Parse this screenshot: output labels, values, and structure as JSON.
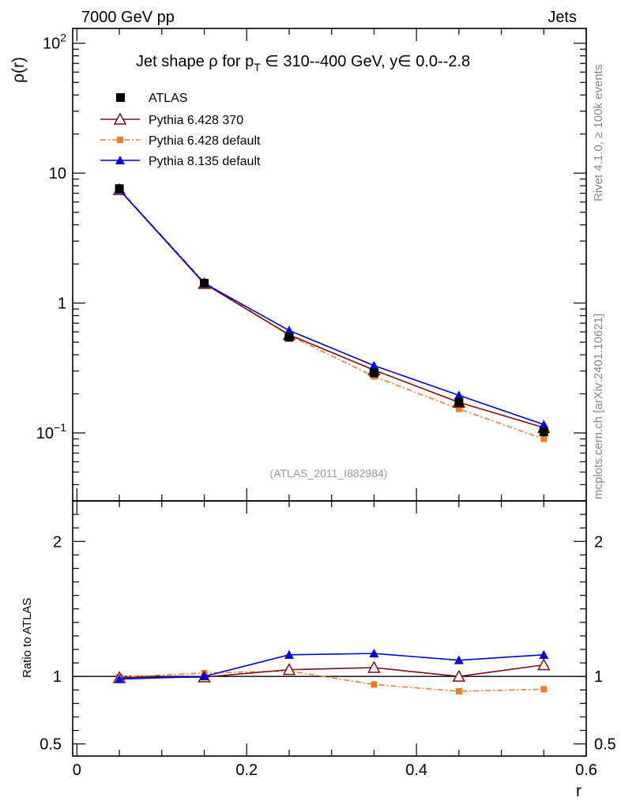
{
  "header": {
    "left": "7000 GeV pp",
    "right": "Jets"
  },
  "side_labels": {
    "rivet": "Rivet 4.1.0, ≥ 100k events",
    "mcplots": "mcplots.cern.ch [arXiv:2401.10621]"
  },
  "chart_data": [
    {
      "type": "line",
      "panel": "main",
      "title": "Jet shape ρ for p_T ∈ 310--400 GeV, y∈ 0.0--2.8",
      "title_parts": {
        "pre": "Jet shape ρ for p",
        "sub": "T",
        "post": " ∈ 310--400 GeV, y∈ 0.0--2.8"
      },
      "xlabel": "r",
      "ylabel": "ρ(r)",
      "yscale": "log",
      "xlim": [
        -0.005,
        0.6
      ],
      "ylim": [
        0.03,
        130
      ],
      "analysis_tag": "(ATLAS_2011_I882984)",
      "legend_position": "top-left",
      "x": [
        0.05,
        0.15,
        0.25,
        0.35,
        0.45,
        0.55
      ],
      "series": [
        {
          "name": "ATLAS",
          "marker": "square",
          "color": "#000000",
          "line": "none",
          "values": [
            7.6,
            1.42,
            0.545,
            0.29,
            0.172,
            0.102
          ]
        },
        {
          "name": "Pythia 6.428 370",
          "marker": "open-triangle",
          "color": "#7f0f17",
          "line": "solid",
          "values": [
            7.45,
            1.41,
            0.57,
            0.305,
            0.172,
            0.11
          ]
        },
        {
          "name": "Pythia 6.428 default",
          "marker": "small-square",
          "color": "#f07c28",
          "line": "dash-dot",
          "values": [
            7.55,
            1.45,
            0.565,
            0.272,
            0.153,
            0.09
          ]
        },
        {
          "name": "Pythia 8.135 default",
          "marker": "triangle",
          "color": "#0000dd",
          "line": "solid",
          "values": [
            7.45,
            1.42,
            0.615,
            0.33,
            0.195,
            0.116
          ]
        }
      ],
      "yticks": [
        {
          "value": 0.1,
          "base": "10",
          "exp": "−1"
        },
        {
          "value": 1,
          "label": "1"
        },
        {
          "value": 10,
          "label": "10"
        },
        {
          "value": 100,
          "base": "10",
          "exp": "2"
        }
      ]
    },
    {
      "type": "line",
      "panel": "ratio",
      "ylabel": "Ratio to ATLAS",
      "xlabel": "r",
      "ylim": [
        0.41,
        2.3
      ],
      "xlim": [
        -0.005,
        0.6
      ],
      "x": [
        0.05,
        0.15,
        0.25,
        0.35,
        0.45,
        0.55
      ],
      "series": [
        {
          "name": "Pythia 6.428 370",
          "values": [
            0.99,
            0.995,
            1.05,
            1.065,
            1.0,
            1.085
          ],
          "errors": [
            0.01,
            0.01,
            0.01,
            0.012,
            0.01,
            0.012
          ]
        },
        {
          "name": "Pythia 6.428 default",
          "values": [
            0.995,
            1.025,
            1.04,
            0.94,
            0.89,
            0.905
          ],
          "errors": [
            0.01,
            0.01,
            0.012,
            0.025,
            0.02,
            0.02
          ]
        },
        {
          "name": "Pythia 8.135 default",
          "values": [
            0.98,
            1.0,
            1.16,
            1.17,
            1.12,
            1.16
          ],
          "errors": [
            0.01,
            0.01,
            0.03,
            0.03,
            0.025,
            0.015
          ]
        }
      ],
      "yticks": [
        {
          "value": 0.5,
          "label": "0.5"
        },
        {
          "value": 1,
          "label": "1"
        },
        {
          "value": 2,
          "label": "2"
        }
      ],
      "xticks": [
        {
          "value": 0,
          "label": "0"
        },
        {
          "value": 0.2,
          "label": "0.2"
        },
        {
          "value": 0.4,
          "label": "0.4"
        },
        {
          "value": 0.6,
          "label": "0.6"
        }
      ]
    }
  ]
}
